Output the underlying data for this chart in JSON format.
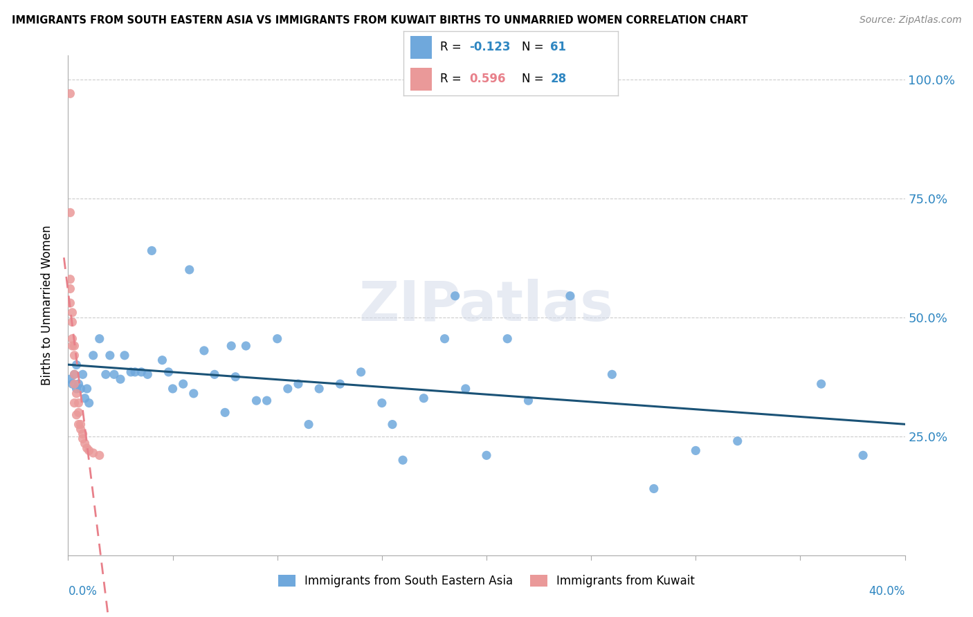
{
  "title": "IMMIGRANTS FROM SOUTH EASTERN ASIA VS IMMIGRANTS FROM KUWAIT BIRTHS TO UNMARRIED WOMEN CORRELATION CHART",
  "source": "Source: ZipAtlas.com",
  "ylabel": "Births to Unmarried Women",
  "xmin": 0.0,
  "xmax": 0.4,
  "ymin": 0.0,
  "ymax": 1.05,
  "right_yticks": [
    0.25,
    0.5,
    0.75,
    1.0
  ],
  "right_yticklabels": [
    "25.0%",
    "50.0%",
    "75.0%",
    "100.0%"
  ],
  "watermark": "ZIPatlas",
  "series1_label": "Immigrants from South Eastern Asia",
  "series2_label": "Immigrants from Kuwait",
  "color_blue": "#6fa8dc",
  "color_pink": "#ea9999",
  "color_trend_blue": "#1a5276",
  "color_trend_pink": "#e8808a",
  "color_axis_label": "#2e86c1",
  "blue_x": [
    0.001,
    0.002,
    0.003,
    0.004,
    0.004,
    0.005,
    0.006,
    0.007,
    0.008,
    0.009,
    0.01,
    0.012,
    0.015,
    0.018,
    0.02,
    0.022,
    0.025,
    0.027,
    0.03,
    0.032,
    0.035,
    0.038,
    0.04,
    0.045,
    0.048,
    0.05,
    0.055,
    0.058,
    0.06,
    0.065,
    0.07,
    0.075,
    0.078,
    0.08,
    0.085,
    0.09,
    0.095,
    0.1,
    0.105,
    0.11,
    0.115,
    0.12,
    0.13,
    0.14,
    0.15,
    0.155,
    0.16,
    0.17,
    0.18,
    0.185,
    0.19,
    0.2,
    0.21,
    0.22,
    0.24,
    0.26,
    0.28,
    0.3,
    0.32,
    0.36,
    0.38
  ],
  "blue_y": [
    0.37,
    0.36,
    0.38,
    0.35,
    0.4,
    0.36,
    0.35,
    0.38,
    0.33,
    0.35,
    0.32,
    0.42,
    0.455,
    0.38,
    0.42,
    0.38,
    0.37,
    0.42,
    0.385,
    0.385,
    0.385,
    0.38,
    0.64,
    0.41,
    0.385,
    0.35,
    0.36,
    0.6,
    0.34,
    0.43,
    0.38,
    0.3,
    0.44,
    0.375,
    0.44,
    0.325,
    0.325,
    0.455,
    0.35,
    0.36,
    0.275,
    0.35,
    0.36,
    0.385,
    0.32,
    0.275,
    0.2,
    0.33,
    0.455,
    0.545,
    0.35,
    0.21,
    0.455,
    0.325,
    0.545,
    0.38,
    0.14,
    0.22,
    0.24,
    0.36,
    0.21
  ],
  "pink_x": [
    0.001,
    0.001,
    0.001,
    0.001,
    0.001,
    0.002,
    0.002,
    0.002,
    0.002,
    0.003,
    0.003,
    0.003,
    0.003,
    0.003,
    0.004,
    0.004,
    0.005,
    0.005,
    0.005,
    0.006,
    0.006,
    0.007,
    0.007,
    0.008,
    0.009,
    0.01,
    0.012,
    0.015
  ],
  "pink_y": [
    0.97,
    0.72,
    0.58,
    0.56,
    0.53,
    0.51,
    0.49,
    0.455,
    0.44,
    0.44,
    0.42,
    0.38,
    0.36,
    0.32,
    0.34,
    0.295,
    0.32,
    0.3,
    0.275,
    0.275,
    0.265,
    0.255,
    0.245,
    0.235,
    0.225,
    0.22,
    0.215,
    0.21
  ]
}
